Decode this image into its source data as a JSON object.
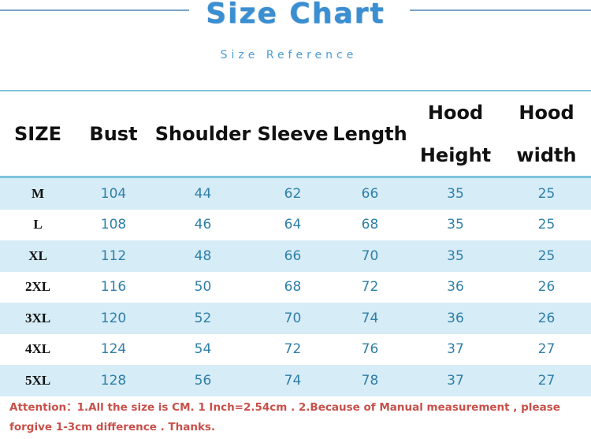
{
  "title": "Size Chart",
  "subtitle": "Size Reference",
  "table": {
    "headers": [
      {
        "line1": "SIZE",
        "line2": ""
      },
      {
        "line1": "Bust",
        "line2": ""
      },
      {
        "line1": "Shoulder",
        "line2": ""
      },
      {
        "line1": "Sleeve",
        "line2": ""
      },
      {
        "line1": "Length",
        "line2": ""
      },
      {
        "line1": "Hood",
        "line2": "Height"
      },
      {
        "line1": "Hood",
        "line2": "width"
      }
    ],
    "rows": [
      [
        "M",
        "104",
        "44",
        "62",
        "66",
        "35",
        "25"
      ],
      [
        "L",
        "108",
        "46",
        "64",
        "68",
        "35",
        "25"
      ],
      [
        "XL",
        "112",
        "48",
        "66",
        "70",
        "35",
        "25"
      ],
      [
        "2XL",
        "116",
        "50",
        "68",
        "72",
        "36",
        "26"
      ],
      [
        "3XL",
        "120",
        "52",
        "70",
        "74",
        "36",
        "26"
      ],
      [
        "4XL",
        "124",
        "54",
        "72",
        "76",
        "37",
        "27"
      ],
      [
        "5XL",
        "128",
        "56",
        "74",
        "78",
        "37",
        "27"
      ]
    ]
  },
  "note": "Attention：1.All the size is CM. 1 Inch=2.54cm . 2.Because of Manual measurement , please forgive 1-3cm difference . Thanks.",
  "colors": {
    "title": "#3a8fd2",
    "row_alt": "#d6ecf6",
    "values": "#2f7fa8",
    "note": "#c8504a"
  }
}
